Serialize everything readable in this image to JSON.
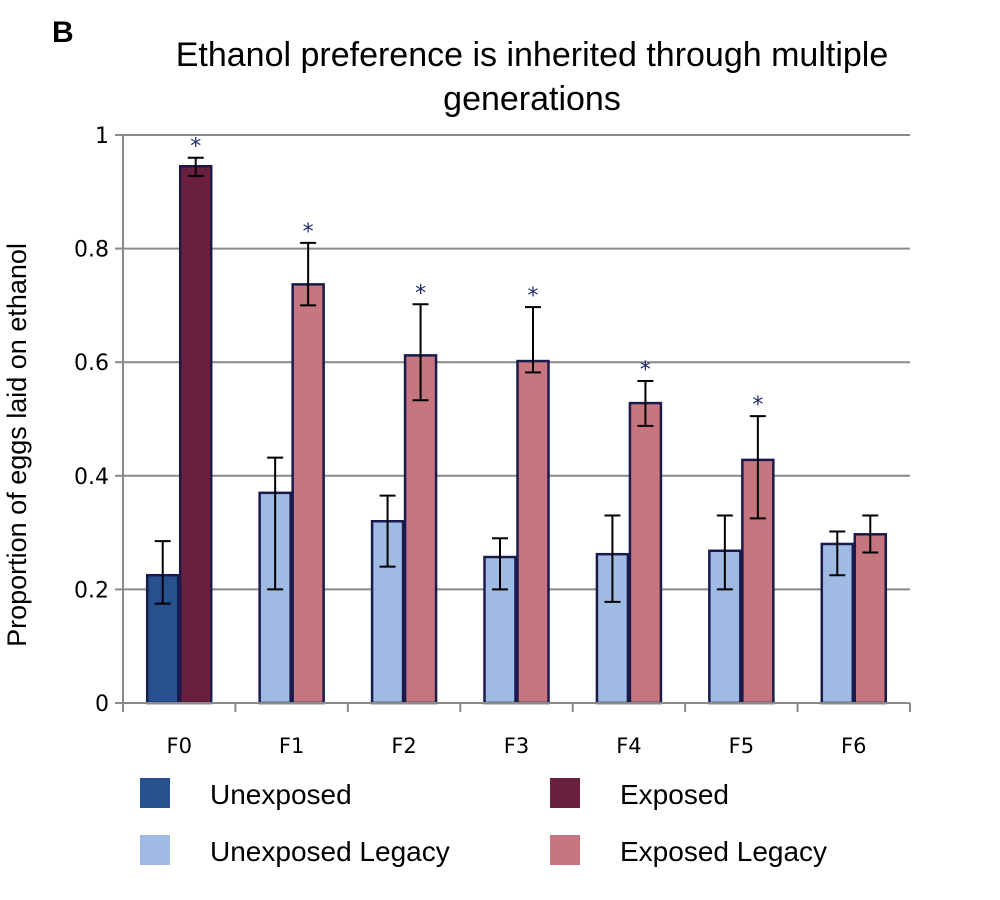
{
  "panel_label": "B",
  "chart_data": {
    "type": "bar",
    "title": "Ethanol preference is inherited through multiple generations",
    "title_lines": [
      "Ethanol preference is inherited through multiple",
      "generations"
    ],
    "ylabel": "Proportion of eggs laid on ethanol",
    "xlabel": "",
    "ylim": [
      0,
      1
    ],
    "yticks": [
      "0",
      "0.2",
      "0.4",
      "0.6",
      "0.8",
      "1"
    ],
    "ytick_values": [
      0,
      0.2,
      0.4,
      0.6,
      0.8,
      1
    ],
    "grid": true,
    "legend_position": "bottom",
    "categories": [
      "F0",
      "F1",
      "F2",
      "F3",
      "F4",
      "F5",
      "F6"
    ],
    "series": [
      {
        "name": "Unexposed",
        "color": "#27508f",
        "values": [
          0.225,
          null,
          null,
          null,
          null,
          null,
          null
        ],
        "err_low": [
          0.175,
          null,
          null,
          null,
          null,
          null,
          null
        ],
        "err_high": [
          0.285,
          null,
          null,
          null,
          null,
          null,
          null
        ]
      },
      {
        "name": "Exposed",
        "color": "#6b1f3f",
        "values": [
          0.945,
          null,
          null,
          null,
          null,
          null,
          null
        ],
        "err_low": [
          0.928,
          null,
          null,
          null,
          null,
          null,
          null
        ],
        "err_high": [
          0.96,
          null,
          null,
          null,
          null,
          null,
          null
        ]
      },
      {
        "name": "Unexposed Legacy",
        "color": "#9fbae3",
        "values": [
          null,
          0.37,
          0.32,
          0.257,
          0.262,
          0.268,
          0.28
        ],
        "err_low": [
          null,
          0.2,
          0.24,
          0.2,
          0.178,
          0.2,
          0.225
        ],
        "err_high": [
          null,
          0.432,
          0.365,
          0.29,
          0.33,
          0.33,
          0.302
        ]
      },
      {
        "name": "Exposed Legacy",
        "color": "#c7767f",
        "values": [
          null,
          0.737,
          0.612,
          0.602,
          0.528,
          0.428,
          0.297
        ],
        "err_low": [
          null,
          0.7,
          0.533,
          0.582,
          0.488,
          0.325,
          0.265
        ],
        "err_high": [
          null,
          0.81,
          0.702,
          0.697,
          0.567,
          0.505,
          0.33
        ]
      }
    ],
    "significance_marks": [
      {
        "category": "F0",
        "series": "Exposed",
        "text": "*"
      },
      {
        "category": "F1",
        "series": "Exposed Legacy",
        "text": "*"
      },
      {
        "category": "F2",
        "series": "Exposed Legacy",
        "text": "*"
      },
      {
        "category": "F3",
        "series": "Exposed Legacy",
        "text": "*"
      },
      {
        "category": "F4",
        "series": "Exposed Legacy",
        "text": "*"
      },
      {
        "category": "F5",
        "series": "Exposed Legacy",
        "text": "*"
      }
    ]
  }
}
